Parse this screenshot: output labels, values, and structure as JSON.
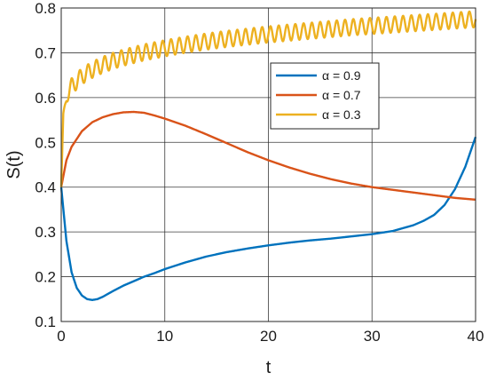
{
  "chart_data": {
    "type": "line",
    "xlabel": "t",
    "ylabel": "S(t)",
    "xlim": [
      0,
      40
    ],
    "ylim": [
      0.1,
      0.8
    ],
    "xticks": [
      0,
      10,
      20,
      30,
      40
    ],
    "yticks": [
      0.1,
      0.2,
      0.3,
      0.4,
      0.5,
      0.6,
      0.7,
      0.8
    ],
    "grid": true,
    "legend_position": "upper-right",
    "series": [
      {
        "name": "α = 0.9",
        "color": "#0072BD",
        "x": [
          0,
          0.5,
          1,
          1.5,
          2,
          2.5,
          3,
          3.5,
          4,
          5,
          6,
          7,
          8,
          9,
          10,
          12,
          14,
          16,
          18,
          20,
          22,
          24,
          26,
          28,
          30,
          32,
          34,
          35,
          36,
          37,
          38,
          39,
          40
        ],
        "y": [
          0.4,
          0.28,
          0.21,
          0.175,
          0.158,
          0.15,
          0.148,
          0.15,
          0.155,
          0.168,
          0.18,
          0.19,
          0.2,
          0.208,
          0.217,
          0.232,
          0.245,
          0.255,
          0.263,
          0.27,
          0.276,
          0.281,
          0.285,
          0.29,
          0.295,
          0.302,
          0.315,
          0.325,
          0.338,
          0.36,
          0.395,
          0.445,
          0.512
        ]
      },
      {
        "name": "α = 0.7",
        "color": "#D95319",
        "x": [
          0,
          0.5,
          1,
          2,
          3,
          4,
          5,
          6,
          7,
          8,
          9,
          10,
          12,
          14,
          16,
          18,
          20,
          22,
          24,
          26,
          28,
          30,
          32,
          34,
          36,
          38,
          40
        ],
        "y": [
          0.4,
          0.46,
          0.49,
          0.525,
          0.545,
          0.556,
          0.563,
          0.567,
          0.568,
          0.566,
          0.56,
          0.553,
          0.537,
          0.518,
          0.498,
          0.478,
          0.46,
          0.444,
          0.43,
          0.418,
          0.408,
          0.4,
          0.394,
          0.388,
          0.382,
          0.376,
          0.372
        ]
      },
      {
        "name": "α = 0.3",
        "color": "#EDB120",
        "x": [
          0,
          0.2,
          0.5,
          1,
          2,
          3,
          4,
          5,
          6,
          8,
          10,
          12,
          14,
          16,
          18,
          20,
          22,
          24,
          26,
          28,
          30,
          32,
          34,
          36,
          38,
          40
        ],
        "y": [
          0.4,
          0.56,
          0.6,
          0.625,
          0.648,
          0.662,
          0.673,
          0.682,
          0.689,
          0.701,
          0.71,
          0.718,
          0.725,
          0.731,
          0.736,
          0.741,
          0.745,
          0.749,
          0.753,
          0.757,
          0.76,
          0.763,
          0.766,
          0.769,
          0.772,
          0.775
        ],
        "oscillation_amplitude": 0.018,
        "oscillation_period": 0.8
      }
    ]
  }
}
